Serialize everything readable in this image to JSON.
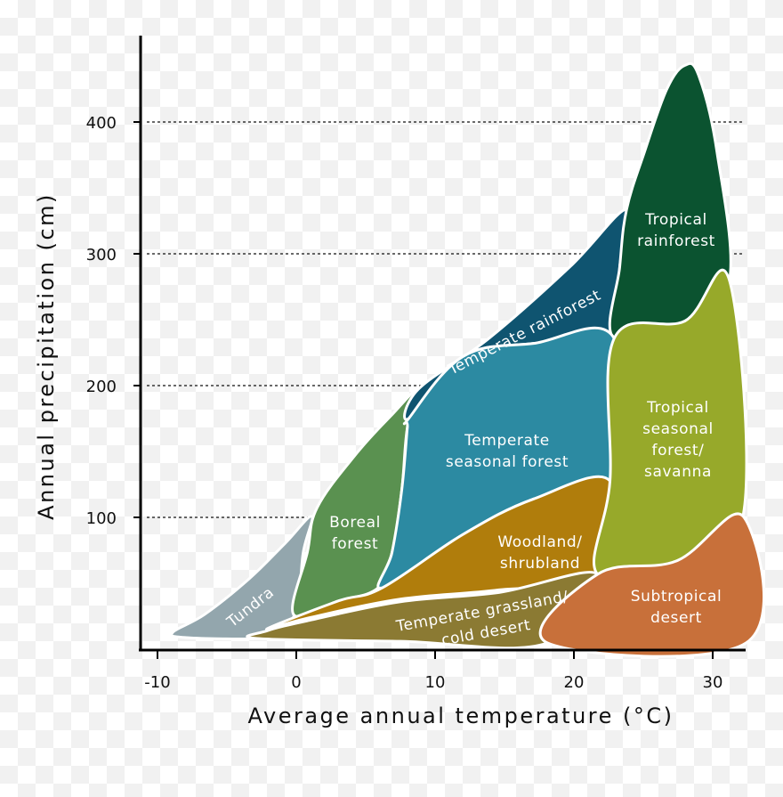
{
  "chart_data": {
    "type": "area",
    "title": "",
    "xlabel": "Average annual temperature (°C)",
    "ylabel": "Annual precipitation (cm)",
    "xlim": [
      -12,
      33
    ],
    "ylim": [
      0,
      460
    ],
    "x_ticks": [
      -10,
      0,
      10,
      20,
      30
    ],
    "y_ticks": [
      100,
      200,
      300,
      400
    ],
    "grid": {
      "horizontal_dashed": true,
      "vertical": false
    },
    "biomes": [
      {
        "name": "Tundra",
        "label_lines": [
          "Tundra"
        ],
        "color": "#93a6ad",
        "boundary": [
          [
            -8.9,
            12.8
          ],
          [
            -6.6,
            26.4
          ],
          [
            -3.4,
            53.4
          ],
          [
            -0.8,
            80.4
          ],
          [
            1.1,
            100.7
          ],
          [
            0.5,
            73.6
          ],
          [
            -0.1,
            26.4
          ],
          [
            -2.1,
            12.8
          ],
          [
            -2.8,
            8.1
          ],
          [
            -7.9,
            8.8
          ]
        ]
      },
      {
        "name": "Boreal forest",
        "label_lines": [
          "Boreal",
          "forest"
        ],
        "color": "#5a9150",
        "boundary": [
          [
            -0.2,
            26.4
          ],
          [
            0.8,
            73.6
          ],
          [
            1.5,
            107.4
          ],
          [
            4.3,
            148
          ],
          [
            6.9,
            178
          ],
          [
            8.8,
            197.3
          ],
          [
            8.0,
            168
          ],
          [
            7.6,
            121
          ],
          [
            6.9,
            73.6
          ],
          [
            5.9,
            46.6
          ],
          [
            3.0,
            36.5
          ]
        ]
      },
      {
        "name": "Temperate rainforest",
        "label_lines": [
          "Temperate rainforest"
        ],
        "color": "#0f5470",
        "boundary": [
          [
            8.8,
            197.3
          ],
          [
            13.9,
            236
          ],
          [
            19.7,
            290
          ],
          [
            23.8,
            333.8
          ],
          [
            23.3,
            290
          ],
          [
            22.9,
            235.8
          ],
          [
            17.1,
            232
          ],
          [
            12,
            222
          ],
          [
            8.1,
            175
          ]
        ]
      },
      {
        "name": "Tropical rainforest",
        "label_lines": [
          "Tropical",
          "rainforest"
        ],
        "color": "#0b5330",
        "boundary": [
          [
            23.8,
            333.8
          ],
          [
            25.1,
            377.7
          ],
          [
            26.7,
            425
          ],
          [
            28.0,
            443
          ],
          [
            29.0,
            435
          ],
          [
            30.3,
            377.7
          ],
          [
            31.2,
            279.7
          ],
          [
            28.0,
            249
          ],
          [
            22.9,
            235.8
          ],
          [
            23.3,
            290
          ]
        ]
      },
      {
        "name": "Temperate seasonal forest",
        "label_lines": [
          "Temperate",
          "seasonal forest"
        ],
        "color": "#2c8aa2",
        "boundary": [
          [
            8.1,
            175
          ],
          [
            12,
            222
          ],
          [
            17.1,
            232
          ],
          [
            22.9,
            235.8
          ],
          [
            22.6,
            127.7
          ],
          [
            17.1,
            114
          ],
          [
            12,
            87
          ],
          [
            6.2,
            46.6
          ],
          [
            6.9,
            73.6
          ],
          [
            7.6,
            121
          ],
          [
            8.0,
            168
          ]
        ]
      },
      {
        "name": "Woodland/shrubland",
        "label_lines": [
          "Woodland/",
          "shrubland"
        ],
        "color": "#b07d0c",
        "boundary": [
          [
            -2.1,
            15.5
          ],
          [
            3.0,
            36.5
          ],
          [
            6.2,
            46.6
          ],
          [
            12,
            87
          ],
          [
            17.1,
            114
          ],
          [
            22.6,
            127.7
          ],
          [
            21.7,
            56.8
          ],
          [
            14.6,
            45
          ],
          [
            7.5,
            38
          ],
          [
            1,
            24
          ]
        ]
      },
      {
        "name": "Temperate grassland/cold desert",
        "label_lines": [
          "Temperate grassland/",
          "cold desert"
        ],
        "color": "#8b7a33",
        "boundary": [
          [
            -2.1,
            14.0
          ],
          [
            1,
            22
          ],
          [
            7.5,
            36
          ],
          [
            14.6,
            43
          ],
          [
            21.7,
            56.8
          ],
          [
            18.1,
            4.7
          ],
          [
            7.5,
            6
          ],
          [
            -2.8,
            8.1
          ]
        ]
      },
      {
        "name": "Tropical seasonal forest/savanna",
        "label_lines": [
          "Tropical",
          "seasonal",
          "forest/",
          "savanna"
        ],
        "color": "#97a92a",
        "boundary": [
          [
            22.9,
            235.8
          ],
          [
            28,
            249
          ],
          [
            31.2,
            280
          ],
          [
            32.2,
            102
          ],
          [
            27.4,
            67
          ],
          [
            21.7,
            56.8
          ],
          [
            22.6,
            127.7
          ]
        ]
      },
      {
        "name": "Subtropical desert",
        "label_lines": [
          "Subtropical",
          "desert"
        ],
        "color": "#c8703a",
        "boundary": [
          [
            21.7,
            56.8
          ],
          [
            27.4,
            67
          ],
          [
            32.2,
            100.7
          ],
          [
            32.4,
            4.7
          ],
          [
            18.1,
            4.7
          ]
        ]
      }
    ]
  }
}
